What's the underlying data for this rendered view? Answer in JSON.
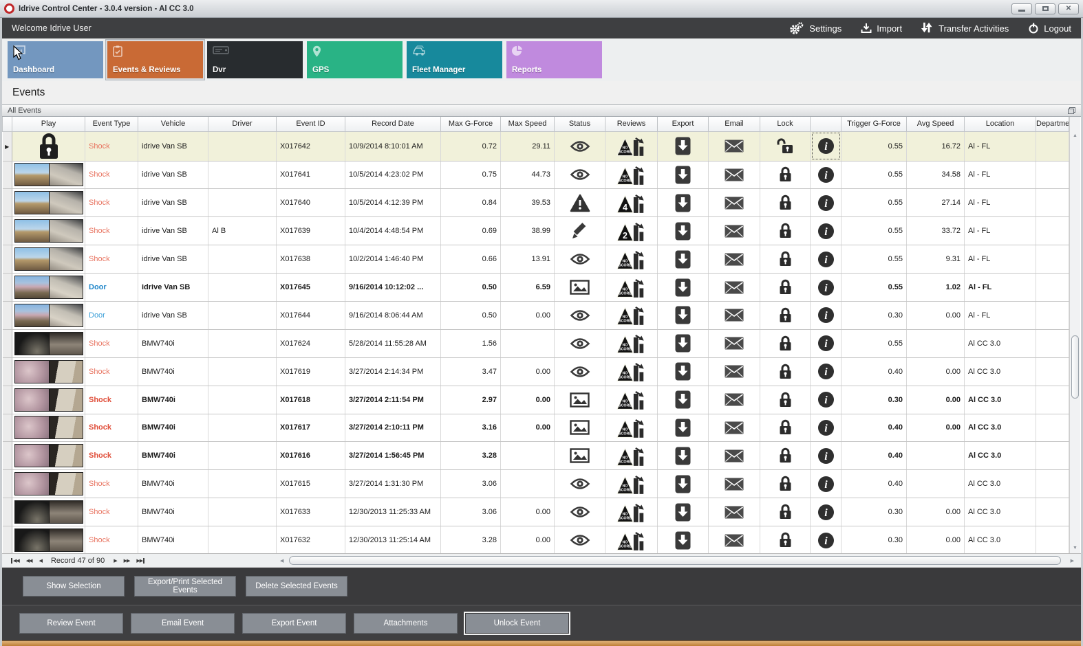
{
  "window": {
    "title": "Idrive Control Center - 3.0.4 version - Al CC 3.0",
    "controls": [
      {
        "name": "minimize"
      },
      {
        "name": "maximize"
      },
      {
        "name": "close"
      }
    ]
  },
  "topbar": {
    "welcome": "Welcome Idrive User",
    "actions": [
      {
        "name": "settings",
        "label": "Settings",
        "icon": "gears-icon"
      },
      {
        "name": "import",
        "label": "Import",
        "icon": "import-icon"
      },
      {
        "name": "transfer-activities",
        "label": "Transfer Activities",
        "icon": "transfer-icon"
      },
      {
        "name": "logout",
        "label": "Logout",
        "icon": "power-icon"
      }
    ]
  },
  "tabs": [
    {
      "name": "dashboard",
      "label": "Dashboard",
      "color": "#7397bf",
      "icon": "monitor-icon",
      "selected": false
    },
    {
      "name": "events-reviews",
      "label": "Events & Reviews",
      "color": "#c96a35",
      "icon": "clipboard-icon",
      "selected": true
    },
    {
      "name": "dvr",
      "label": "Dvr",
      "color": "#282c2f",
      "icon": "dvr-icon",
      "selected": false
    },
    {
      "name": "gps",
      "label": "GPS",
      "color": "#29b385",
      "icon": "pin-icon",
      "selected": false
    },
    {
      "name": "fleet-manager",
      "label": "Fleet Manager",
      "color": "#17899c",
      "icon": "fleet-icon",
      "selected": false
    },
    {
      "name": "reports",
      "label": "Reports",
      "color": "#c08ade",
      "icon": "pie-icon",
      "selected": false
    }
  ],
  "page": {
    "title": "Events",
    "panel_title": "All Events"
  },
  "table": {
    "columns": [
      "",
      "Play",
      "Event Type",
      "Vehicle",
      "Driver",
      "Event ID",
      "Record Date",
      "Max G-Force",
      "Max Speed",
      "Status",
      "Reviews",
      "Export",
      "Email",
      "Lock",
      "",
      "Trigger G-Force",
      "Avg Speed",
      "Location",
      "Department"
    ],
    "rows": [
      {
        "selected": true,
        "bold": false,
        "thumb": "lock",
        "event_type": "Shock",
        "type_style": "shock",
        "vehicle": "idrive Van SB",
        "driver": "",
        "event_id": "X017642",
        "record_date": "10/9/2014 8:10:01 AM",
        "max_g": "0.72",
        "max_speed": "29.11",
        "status": "eye",
        "review_badge": "NO SCORE",
        "lock": "unlocked",
        "trigger_g": "0.55",
        "avg_speed": "16.72",
        "location": "Al - FL",
        "department": ""
      },
      {
        "selected": false,
        "bold": false,
        "thumb": "van",
        "event_type": "Shock",
        "type_style": "shock",
        "vehicle": "idrive Van SB",
        "driver": "",
        "event_id": "X017641",
        "record_date": "10/5/2014 4:23:02 PM",
        "max_g": "0.75",
        "max_speed": "44.73",
        "status": "eye",
        "review_badge": "NO SCORE",
        "lock": "locked",
        "trigger_g": "0.55",
        "avg_speed": "34.58",
        "location": "Al - FL",
        "department": ""
      },
      {
        "selected": false,
        "bold": false,
        "thumb": "van",
        "event_type": "Shock",
        "type_style": "shock",
        "vehicle": "idrive Van SB",
        "driver": "",
        "event_id": "X017640",
        "record_date": "10/5/2014 4:12:39 PM",
        "max_g": "0.84",
        "max_speed": "39.53",
        "status": "warning",
        "review_badge": "4",
        "lock": "locked",
        "trigger_g": "0.55",
        "avg_speed": "27.14",
        "location": "Al - FL",
        "department": ""
      },
      {
        "selected": false,
        "bold": false,
        "thumb": "van",
        "event_type": "Shock",
        "type_style": "shock",
        "vehicle": "idrive Van SB",
        "driver": "Al B",
        "event_id": "X017639",
        "record_date": "10/4/2014 4:48:54 PM",
        "max_g": "0.69",
        "max_speed": "38.99",
        "status": "pencil",
        "review_badge": "2",
        "lock": "locked",
        "trigger_g": "0.55",
        "avg_speed": "33.72",
        "location": "Al - FL",
        "department": ""
      },
      {
        "selected": false,
        "bold": false,
        "thumb": "van",
        "event_type": "Shock",
        "type_style": "shock",
        "vehicle": "idrive Van SB",
        "driver": "",
        "event_id": "X017638",
        "record_date": "10/2/2014 1:46:40 PM",
        "max_g": "0.66",
        "max_speed": "13.91",
        "status": "eye",
        "review_badge": "NO SCORE",
        "lock": "locked",
        "trigger_g": "0.55",
        "avg_speed": "9.31",
        "location": "Al - FL",
        "department": ""
      },
      {
        "selected": false,
        "bold": true,
        "thumb": "van2",
        "event_type": "Door",
        "type_style": "door",
        "vehicle": "idrive Van SB",
        "driver": "",
        "event_id": "X017645",
        "record_date": "9/16/2014 10:12:02 ...",
        "max_g": "0.50",
        "max_speed": "6.59",
        "status": "picture",
        "review_badge": "NO SCORE",
        "lock": "locked",
        "trigger_g": "0.55",
        "avg_speed": "1.02",
        "location": "Al - FL",
        "department": ""
      },
      {
        "selected": false,
        "bold": false,
        "thumb": "van2",
        "event_type": "Door",
        "type_style": "door",
        "vehicle": "idrive Van SB",
        "driver": "",
        "event_id": "X017644",
        "record_date": "9/16/2014 8:06:44 AM",
        "max_g": "0.50",
        "max_speed": "0.00",
        "status": "eye",
        "review_badge": "NO SCORE",
        "lock": "locked",
        "trigger_g": "0.30",
        "avg_speed": "0.00",
        "location": "Al - FL",
        "department": ""
      },
      {
        "selected": false,
        "bold": false,
        "thumb": "bmw-dark",
        "event_type": "Shock",
        "type_style": "shock",
        "vehicle": "BMW740i",
        "driver": "",
        "event_id": "X017624",
        "record_date": "5/28/2014 11:55:28 AM",
        "max_g": "1.56",
        "max_speed": "",
        "status": "eye",
        "review_badge": "NO SCORE",
        "lock": "locked",
        "trigger_g": "0.55",
        "avg_speed": "",
        "location": "Al CC 3.0",
        "department": ""
      },
      {
        "selected": false,
        "bold": false,
        "thumb": "bmw-indoor",
        "event_type": "Shock",
        "type_style": "shock",
        "vehicle": "BMW740i",
        "driver": "",
        "event_id": "X017619",
        "record_date": "3/27/2014 2:14:34 PM",
        "max_g": "3.47",
        "max_speed": "0.00",
        "status": "eye",
        "review_badge": "NO SCORE",
        "lock": "locked",
        "trigger_g": "0.40",
        "avg_speed": "0.00",
        "location": "Al CC 3.0",
        "department": ""
      },
      {
        "selected": false,
        "bold": true,
        "thumb": "bmw-indoor",
        "event_type": "Shock",
        "type_style": "shock",
        "vehicle": "BMW740i",
        "driver": "",
        "event_id": "X017618",
        "record_date": "3/27/2014 2:11:54 PM",
        "max_g": "2.97",
        "max_speed": "0.00",
        "status": "picture",
        "review_badge": "NO SCORE",
        "lock": "locked",
        "trigger_g": "0.30",
        "avg_speed": "0.00",
        "location": "Al CC 3.0",
        "department": ""
      },
      {
        "selected": false,
        "bold": true,
        "thumb": "bmw-indoor",
        "event_type": "Shock",
        "type_style": "shock",
        "vehicle": "BMW740i",
        "driver": "",
        "event_id": "X017617",
        "record_date": "3/27/2014 2:10:11 PM",
        "max_g": "3.16",
        "max_speed": "0.00",
        "status": "picture",
        "review_badge": "NO SCORE",
        "lock": "locked",
        "trigger_g": "0.40",
        "avg_speed": "0.00",
        "location": "Al CC 3.0",
        "department": ""
      },
      {
        "selected": false,
        "bold": true,
        "thumb": "bmw-indoor",
        "event_type": "Shock",
        "type_style": "shock",
        "vehicle": "BMW740i",
        "driver": "",
        "event_id": "X017616",
        "record_date": "3/27/2014 1:56:45 PM",
        "max_g": "3.28",
        "max_speed": "",
        "status": "picture",
        "review_badge": "NO SCORE",
        "lock": "locked",
        "trigger_g": "0.40",
        "avg_speed": "",
        "location": "Al CC 3.0",
        "department": ""
      },
      {
        "selected": false,
        "bold": false,
        "thumb": "bmw-indoor",
        "event_type": "Shock",
        "type_style": "shock",
        "vehicle": "BMW740i",
        "driver": "",
        "event_id": "X017615",
        "record_date": "3/27/2014 1:31:30 PM",
        "max_g": "3.06",
        "max_speed": "",
        "status": "eye",
        "review_badge": "NO SCORE",
        "lock": "locked",
        "trigger_g": "0.40",
        "avg_speed": "",
        "location": "Al CC 3.0",
        "department": ""
      },
      {
        "selected": false,
        "bold": false,
        "thumb": "bmw-dark",
        "event_type": "Shock",
        "type_style": "shock",
        "vehicle": "BMW740i",
        "driver": "",
        "event_id": "X017633",
        "record_date": "12/30/2013 11:25:33 AM",
        "max_g": "3.06",
        "max_speed": "0.00",
        "status": "eye",
        "review_badge": "NO SCORE",
        "lock": "locked",
        "trigger_g": "0.30",
        "avg_speed": "0.00",
        "location": "Al CC 3.0",
        "department": ""
      },
      {
        "selected": false,
        "bold": false,
        "thumb": "bmw-dark",
        "event_type": "Shock",
        "type_style": "shock",
        "vehicle": "BMW740i",
        "driver": "",
        "event_id": "X017632",
        "record_date": "12/30/2013 11:25:14 AM",
        "max_g": "3.28",
        "max_speed": "0.00",
        "status": "eye",
        "review_badge": "NO SCORE",
        "lock": "locked",
        "trigger_g": "0.30",
        "avg_speed": "0.00",
        "location": "Al CC 3.0",
        "department": ""
      }
    ]
  },
  "pager": {
    "record_text": "Record 47 of 90"
  },
  "selection_panel": {
    "buttons": [
      "Show Selection",
      "Export/Print Selected Events",
      "Delete Selected  Events"
    ]
  },
  "actions_panel": {
    "buttons": [
      "Review Event",
      "Email Event",
      "Export Event",
      "Attachments",
      "Unlock Event"
    ]
  }
}
